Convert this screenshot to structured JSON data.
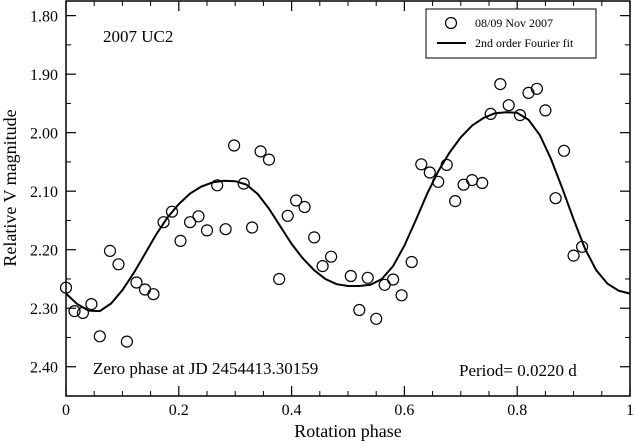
{
  "chart_data": {
    "type": "scatter",
    "title": "2007 UC2",
    "xlabel": "Rotation phase",
    "ylabel": "Relative V magnitude",
    "xlim": [
      0,
      1
    ],
    "ylim": [
      2.45,
      1.775
    ],
    "y_inverted": true,
    "grid": false,
    "legend_placement": "top-right",
    "x_ticks": [
      "0",
      "0.2",
      "0.4",
      "0.6",
      "0.8",
      "1"
    ],
    "x_tick_values": [
      0,
      0.2,
      0.4,
      0.6,
      0.8,
      1.0
    ],
    "y_ticks": [
      "1.80",
      "1.90",
      "2.00",
      "2.10",
      "2.20",
      "2.30",
      "2.40"
    ],
    "y_tick_values": [
      1.8,
      1.9,
      2.0,
      2.1,
      2.2,
      2.3,
      2.4
    ],
    "annotations": {
      "zero_phase": "Zero phase at JD 2454413.30159",
      "period": "Period= 0.0220 d"
    },
    "series": [
      {
        "name": "08/09 Nov 2007",
        "kind": "scatter",
        "marker": "open-circle",
        "points": [
          [
            0.0,
            2.265
          ],
          [
            0.015,
            2.305
          ],
          [
            0.03,
            2.308
          ],
          [
            0.045,
            2.293
          ],
          [
            0.06,
            2.348
          ],
          [
            0.078,
            2.202
          ],
          [
            0.093,
            2.225
          ],
          [
            0.108,
            2.357
          ],
          [
            0.125,
            2.256
          ],
          [
            0.14,
            2.268
          ],
          [
            0.155,
            2.276
          ],
          [
            0.173,
            2.153
          ],
          [
            0.188,
            2.135
          ],
          [
            0.203,
            2.185
          ],
          [
            0.22,
            2.153
          ],
          [
            0.235,
            2.143
          ],
          [
            0.25,
            2.167
          ],
          [
            0.268,
            2.09
          ],
          [
            0.283,
            2.165
          ],
          [
            0.298,
            2.022
          ],
          [
            0.315,
            2.087
          ],
          [
            0.33,
            2.162
          ],
          [
            0.345,
            2.032
          ],
          [
            0.36,
            2.046
          ],
          [
            0.378,
            2.25
          ],
          [
            0.393,
            2.142
          ],
          [
            0.408,
            2.116
          ],
          [
            0.423,
            2.127
          ],
          [
            0.44,
            2.179
          ],
          [
            0.455,
            2.228
          ],
          [
            0.47,
            2.212
          ],
          [
            0.505,
            2.245
          ],
          [
            0.52,
            2.303
          ],
          [
            0.535,
            2.248
          ],
          [
            0.55,
            2.318
          ],
          [
            0.565,
            2.26
          ],
          [
            0.58,
            2.251
          ],
          [
            0.595,
            2.278
          ],
          [
            0.613,
            2.221
          ],
          [
            0.63,
            2.054
          ],
          [
            0.645,
            2.068
          ],
          [
            0.66,
            2.084
          ],
          [
            0.675,
            2.055
          ],
          [
            0.69,
            2.117
          ],
          [
            0.705,
            2.089
          ],
          [
            0.72,
            2.081
          ],
          [
            0.738,
            2.086
          ],
          [
            0.753,
            1.968
          ],
          [
            0.77,
            1.917
          ],
          [
            0.785,
            1.953
          ],
          [
            0.805,
            1.97
          ],
          [
            0.82,
            1.932
          ],
          [
            0.835,
            1.925
          ],
          [
            0.85,
            1.962
          ],
          [
            0.868,
            2.112
          ],
          [
            0.883,
            2.031
          ],
          [
            0.9,
            2.21
          ],
          [
            0.915,
            2.195
          ]
        ]
      },
      {
        "name": "2nd order Fourier fit",
        "kind": "line",
        "points": [
          [
            0.0,
            2.275
          ],
          [
            0.02,
            2.293
          ],
          [
            0.04,
            2.304
          ],
          [
            0.06,
            2.305
          ],
          [
            0.08,
            2.292
          ],
          [
            0.1,
            2.269
          ],
          [
            0.12,
            2.24
          ],
          [
            0.14,
            2.207
          ],
          [
            0.16,
            2.174
          ],
          [
            0.18,
            2.145
          ],
          [
            0.2,
            2.122
          ],
          [
            0.22,
            2.104
          ],
          [
            0.24,
            2.092
          ],
          [
            0.26,
            2.085
          ],
          [
            0.28,
            2.082
          ],
          [
            0.3,
            2.083
          ],
          [
            0.32,
            2.089
          ],
          [
            0.34,
            2.105
          ],
          [
            0.36,
            2.13
          ],
          [
            0.38,
            2.16
          ],
          [
            0.4,
            2.19
          ],
          [
            0.42,
            2.215
          ],
          [
            0.44,
            2.235
          ],
          [
            0.46,
            2.25
          ],
          [
            0.48,
            2.259
          ],
          [
            0.5,
            2.262
          ],
          [
            0.52,
            2.262
          ],
          [
            0.54,
            2.26
          ],
          [
            0.56,
            2.25
          ],
          [
            0.58,
            2.228
          ],
          [
            0.6,
            2.193
          ],
          [
            0.62,
            2.15
          ],
          [
            0.64,
            2.105
          ],
          [
            0.66,
            2.066
          ],
          [
            0.68,
            2.034
          ],
          [
            0.7,
            2.008
          ],
          [
            0.72,
            1.988
          ],
          [
            0.74,
            1.975
          ],
          [
            0.76,
            1.967
          ],
          [
            0.78,
            1.965
          ],
          [
            0.8,
            1.966
          ],
          [
            0.82,
            1.978
          ],
          [
            0.84,
            2.004
          ],
          [
            0.86,
            2.045
          ],
          [
            0.88,
            2.095
          ],
          [
            0.9,
            2.148
          ],
          [
            0.92,
            2.198
          ],
          [
            0.94,
            2.235
          ],
          [
            0.96,
            2.258
          ],
          [
            0.98,
            2.27
          ],
          [
            1.0,
            2.275
          ]
        ]
      }
    ]
  }
}
